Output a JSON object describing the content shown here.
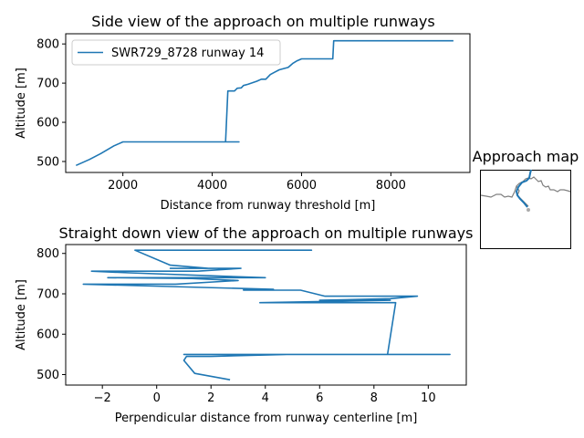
{
  "colors": {
    "series": "#1f77b4",
    "map_coast": "#808080",
    "map_runway": "#aaaaaa"
  },
  "chart_data": [
    {
      "type": "line",
      "title": "Side view of the approach on multiple runways",
      "xlabel": "Distance from runway threshold [m]",
      "ylabel": "Altitude [m]",
      "xlim": [
        720,
        9770
      ],
      "ylim": [
        472,
        826
      ],
      "xticks": [
        2000,
        4000,
        6000,
        8000
      ],
      "yticks": [
        500,
        600,
        700,
        800
      ],
      "legend": "top-left",
      "series": [
        {
          "name": "SWR729_8728 runway 14",
          "x": [
            950,
            1250,
            1500,
            1800,
            1900,
            2000,
            3000,
            4000,
            4600,
            4300,
            4350,
            4400,
            4500,
            4560,
            4650,
            4700,
            4800,
            5000,
            5100,
            5200,
            5300,
            5400,
            5500,
            5700,
            5800,
            5900,
            6000,
            6700,
            6720,
            8600,
            9400
          ],
          "y": [
            490,
            505,
            520,
            540,
            545,
            550,
            550,
            550,
            550,
            550,
            680,
            680,
            680,
            687,
            688,
            694,
            697,
            705,
            710,
            710,
            722,
            728,
            734,
            740,
            750,
            757,
            762,
            762,
            808,
            808,
            808
          ]
        }
      ]
    },
    {
      "type": "line",
      "title": "Straight down view of the approach on multiple runways",
      "xlabel": "Perpendicular distance from runway centerline [m]",
      "ylabel": "Altitude [m]",
      "xlim": [
        -3.35,
        11.4
      ],
      "ylim": [
        474,
        822
      ],
      "xticks": [
        -2,
        0,
        2,
        4,
        6,
        8,
        10
      ],
      "yticks": [
        500,
        600,
        700,
        800
      ],
      "series": [
        {
          "name": "",
          "x": [
            2.7,
            1.4,
            1.0,
            1.1,
            2.0,
            4.8,
            6.8,
            1.0,
            10.8,
            9.0,
            8.5,
            8.8,
            3.8,
            8.6,
            6.0,
            8.6,
            9.6,
            6.2,
            5.3,
            3.2,
            3.2,
            4.3,
            -2.7,
            0.7,
            3.0,
            1.3,
            -1.8,
            4.0,
            -1.0,
            -2.4,
            1.5,
            3.1,
            0.5,
            1.9,
            0.5,
            -0.8,
            5.7,
            0.0
          ],
          "y": [
            487,
            503,
            535,
            545,
            545,
            550,
            550,
            550,
            550,
            550,
            550,
            678,
            678,
            684,
            684,
            688,
            694,
            694,
            709,
            709,
            711,
            711,
            724,
            724,
            733,
            738,
            740,
            740,
            752,
            756,
            756,
            763,
            763,
            763,
            771,
            808,
            808,
            808
          ]
        }
      ]
    }
  ],
  "approach_map": {
    "title": "Approach map"
  }
}
